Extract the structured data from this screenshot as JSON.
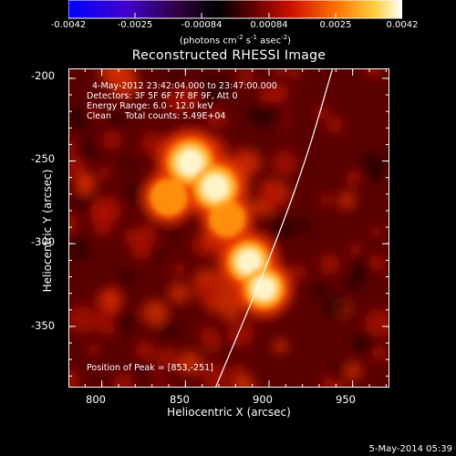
{
  "colorbar": {
    "ticks": [
      "-0.0042",
      "-0.0025",
      "-0.00084",
      "0.00084",
      "0.0025",
      "0.0042"
    ],
    "units_main": "(photons cm",
    "units_sup1": "-2",
    "units_mid": " s",
    "units_sup2": "-1",
    "units_end": " asec",
    "units_sup3": "-2",
    "units_close": ")"
  },
  "chart_data": {
    "type": "heatmap",
    "title": "Reconstructed RHESSI Image",
    "xlabel": "Heliocentric X (arcsec)",
    "ylabel": "Heliocentric Y (arcsec)",
    "xlim": [
      780,
      972
    ],
    "ylim": [
      -387,
      -194
    ],
    "xticks": [
      "800",
      "850",
      "900",
      "950"
    ],
    "yticks": [
      "-200",
      "-250",
      "-300",
      "-350"
    ],
    "color_range": [
      -0.0042,
      0.0042
    ],
    "colormap": [
      "#0000ff",
      "#5a00c0",
      "#000000",
      "#8a0000",
      "#ff3000",
      "#ff9000",
      "#ffff80",
      "#ffffff"
    ],
    "sources": [
      {
        "x": 853,
        "y": -251,
        "peak": 0.0042
      },
      {
        "x": 868,
        "y": -266,
        "peak": 0.004
      },
      {
        "x": 888,
        "y": -311,
        "peak": 0.0034
      },
      {
        "x": 897,
        "y": -327,
        "peak": 0.003
      },
      {
        "x": 840,
        "y": -272,
        "peak": 0.0022
      },
      {
        "x": 875,
        "y": -285,
        "peak": 0.002
      }
    ],
    "limb_curve": [
      [
        868,
        -387
      ],
      [
        900,
        -310
      ],
      [
        922,
        -250
      ],
      [
        938,
        -194
      ]
    ],
    "info_lines": [
      "4-May-2012 23:42:04.000 to 23:47:00.000",
      "Detectors: 3F 5F 6F 7F 8F 9F, Att 0",
      "Energy Range: 6.0 - 12.0 keV",
      "Clean     Total counts: 5.49E+04"
    ],
    "peak_label": "Position of Peak = [853,-251]"
  },
  "footer": {
    "date": "5-May-2014 05:39"
  }
}
